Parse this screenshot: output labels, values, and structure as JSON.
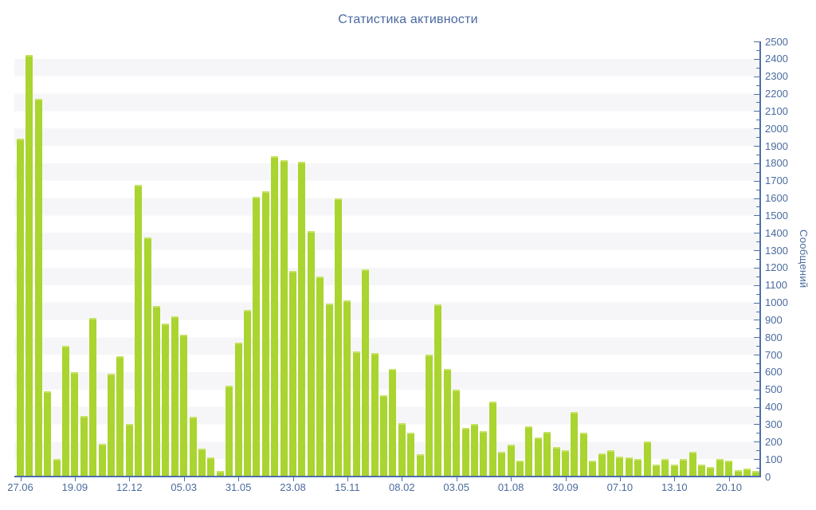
{
  "title": "Статистика активности",
  "chart_data": {
    "type": "bar",
    "title": "Статистика активности",
    "ylabel": "Сообщений",
    "xlabel": "",
    "ylim": [
      0,
      2500
    ],
    "y_major_step": 100,
    "y_minor_step": 50,
    "grid": "horizontal-stripes",
    "legend": "none",
    "y_axis_side": "right",
    "x_tick_labels": [
      "27.06",
      "19.09",
      "12.12",
      "05.03",
      "31.05",
      "23.08",
      "15.11",
      "08.02",
      "03.05",
      "01.08",
      "30.09",
      "07.10",
      "13.10",
      "20.10"
    ],
    "x_label_every_n_bars": 6,
    "values": [
      1940,
      2420,
      2170,
      490,
      100,
      750,
      600,
      350,
      910,
      190,
      590,
      690,
      300,
      1675,
      1375,
      980,
      880,
      920,
      815,
      345,
      160,
      110,
      30,
      520,
      770,
      955,
      1605,
      1640,
      1840,
      1820,
      1180,
      1810,
      1410,
      1150,
      995,
      1600,
      1010,
      720,
      1190,
      710,
      465,
      620,
      305,
      250,
      130,
      700,
      990,
      620,
      500,
      280,
      300,
      260,
      430,
      140,
      185,
      90,
      290,
      225,
      255,
      170,
      150,
      370,
      250,
      90,
      135,
      150,
      115,
      110,
      100,
      200,
      70,
      100,
      70,
      100,
      140,
      70,
      55,
      100,
      90,
      35,
      45,
      30
    ],
    "colors": {
      "bar": "#aad42f",
      "bar_cap": "#c6e263",
      "axis_line": "#4d6fa8",
      "tick_text": "#4a6b9e",
      "title_text": "#4a69a0",
      "stripe": "#f6f6f8",
      "background": "#ffffff"
    }
  }
}
